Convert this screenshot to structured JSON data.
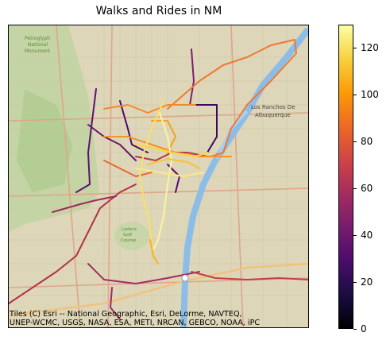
{
  "title": "Walks and Rides in NM",
  "basemap": {
    "attribution_line1": "Tiles (C) Esri -- National Geographic, Esri, DeLorme, NAVTEQ,",
    "attribution_line2": "UNEP-WCMC, USGS, NASA, ESA, METI, NRCAN, GEBCO, NOAA, iPC",
    "labels": {
      "petroglyph": "Petroglyph National Monument",
      "los_ranchos": "Los Ranchos De Albuquerque",
      "golf": "Ladera Golf Course"
    },
    "colors": {
      "land": "#ddd6b8",
      "park": "#b8cf9c",
      "water": "#8fbfe8",
      "road": "#d9a489",
      "highway": "#f0c080"
    }
  },
  "colorbar": {
    "colormap": "inferno",
    "min": 0,
    "max": 130,
    "ticks": [
      "0",
      "20",
      "40",
      "60",
      "80",
      "100",
      "120"
    ],
    "tick_values": [
      0,
      20,
      40,
      60,
      80,
      100,
      120
    ]
  }
}
